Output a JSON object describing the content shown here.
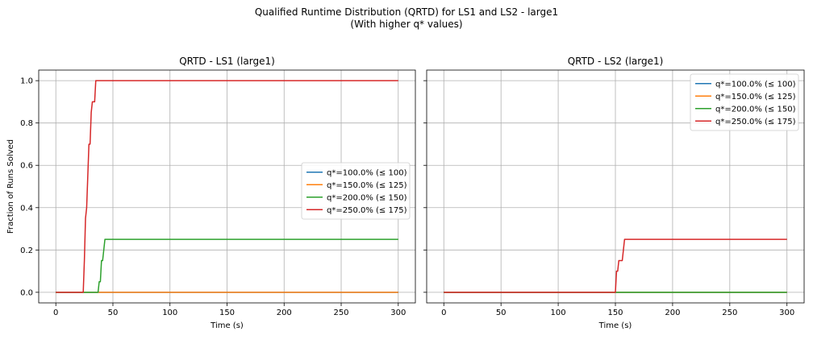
{
  "figure": {
    "suptitle_line1": "Qualified Runtime Distribution (QRTD) for LS1 and LS2 - large1",
    "suptitle_line2": "(With higher q* values)"
  },
  "colors": {
    "s1": "#1f77b4",
    "s2": "#ff7f0e",
    "s3": "#2ca02c",
    "s4": "#d62728",
    "grid": "#b0b0b0",
    "axis": "#000000"
  },
  "chart_data": [
    {
      "type": "line",
      "title": "QRTD - LS1 (large1)",
      "xlabel": "Time (s)",
      "ylabel": "Fraction of Runs Solved",
      "xlim": [
        -15,
        315
      ],
      "ylim": [
        -0.05,
        1.05
      ],
      "xticks": [
        0,
        50,
        100,
        150,
        200,
        250,
        300
      ],
      "yticks": [
        0.0,
        0.2,
        0.4,
        0.6,
        0.8,
        1.0
      ],
      "ytick_labels": [
        "0.0",
        "0.2",
        "0.4",
        "0.6",
        "0.8",
        "1.0"
      ],
      "grid": true,
      "legend_position": "center-right",
      "series": [
        {
          "name": "q*=100.0% (≤ 100)",
          "color_key": "s1",
          "points": [
            [
              0,
              0
            ],
            [
              300,
              0
            ]
          ]
        },
        {
          "name": "q*=150.0% (≤ 125)",
          "color_key": "s2",
          "points": [
            [
              0,
              0
            ],
            [
              300,
              0
            ]
          ]
        },
        {
          "name": "q*=200.0% (≤ 150)",
          "color_key": "s3",
          "points": [
            [
              0,
              0
            ],
            [
              37,
              0
            ],
            [
              38,
              0.05
            ],
            [
              39,
              0.05
            ],
            [
              40,
              0.15
            ],
            [
              41,
              0.15
            ],
            [
              42,
              0.2
            ],
            [
              43,
              0.25
            ],
            [
              300,
              0.25
            ]
          ]
        },
        {
          "name": "q*=250.0% (≤ 175)",
          "color_key": "s4",
          "points": [
            [
              0,
              0
            ],
            [
              24,
              0
            ],
            [
              25,
              0.15
            ],
            [
              26,
              0.35
            ],
            [
              27,
              0.4
            ],
            [
              28,
              0.55
            ],
            [
              29,
              0.7
            ],
            [
              30,
              0.7
            ],
            [
              31,
              0.85
            ],
            [
              32,
              0.9
            ],
            [
              34,
              0.9
            ],
            [
              35,
              1.0
            ],
            [
              300,
              1.0
            ]
          ]
        }
      ]
    },
    {
      "type": "line",
      "title": "QRTD - LS2 (large1)",
      "xlabel": "Time (s)",
      "ylabel": "",
      "xlim": [
        -15,
        315
      ],
      "ylim": [
        -0.05,
        1.05
      ],
      "xticks": [
        0,
        50,
        100,
        150,
        200,
        250,
        300
      ],
      "yticks": [
        0.0,
        0.2,
        0.4,
        0.6,
        0.8,
        1.0
      ],
      "ytick_labels": [
        "",
        "",
        "",
        "",
        "",
        ""
      ],
      "grid": true,
      "legend_position": "top-right",
      "series": [
        {
          "name": "q*=100.0% (≤ 100)",
          "color_key": "s1",
          "points": [
            [
              0,
              0
            ],
            [
              300,
              0
            ]
          ]
        },
        {
          "name": "q*=150.0% (≤ 125)",
          "color_key": "s2",
          "points": [
            [
              0,
              0
            ],
            [
              300,
              0
            ]
          ]
        },
        {
          "name": "q*=200.0% (≤ 150)",
          "color_key": "s3",
          "points": [
            [
              0,
              0
            ],
            [
              300,
              0
            ]
          ]
        },
        {
          "name": "q*=250.0% (≤ 175)",
          "color_key": "s4",
          "points": [
            [
              0,
              0
            ],
            [
              150,
              0
            ],
            [
              151,
              0.1
            ],
            [
              152,
              0.1
            ],
            [
              153,
              0.15
            ],
            [
              156,
              0.15
            ],
            [
              157,
              0.2
            ],
            [
              158,
              0.25
            ],
            [
              300,
              0.25
            ]
          ]
        }
      ]
    }
  ]
}
